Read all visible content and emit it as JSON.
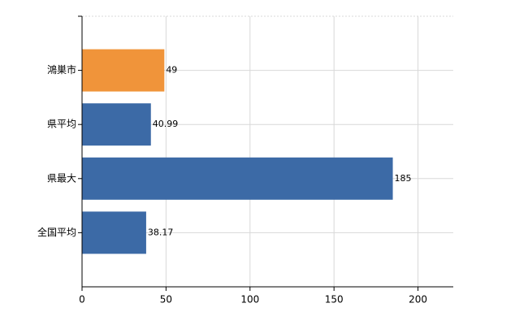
{
  "chart_data": {
    "type": "bar",
    "orientation": "horizontal",
    "categories": [
      "鴻巣市",
      "県平均",
      "県最大",
      "全国平均"
    ],
    "values": [
      49,
      40.99,
      185,
      38.17
    ],
    "colors": [
      "#f0943a",
      "#3c6aa6",
      "#3c6aa6",
      "#3c6aa6"
    ],
    "xlim": [
      0,
      221
    ],
    "xticks": [
      0,
      50,
      100,
      150,
      200
    ],
    "grid": true
  }
}
